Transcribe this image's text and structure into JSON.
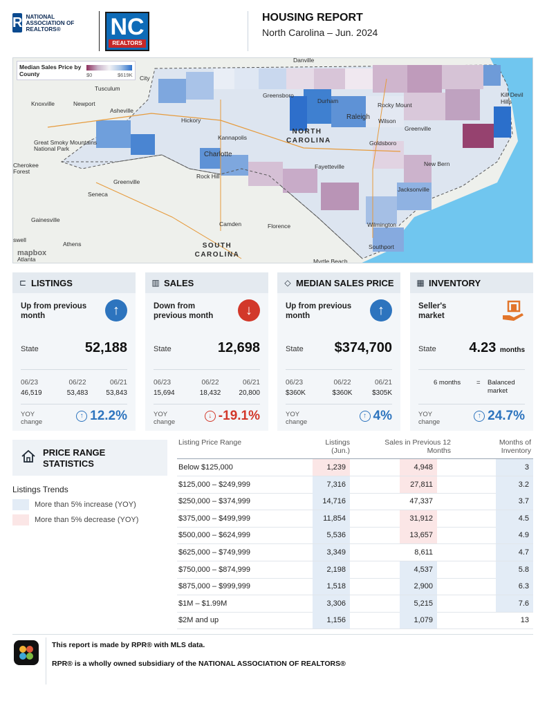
{
  "header": {
    "nar_logo_text": "NATIONAL ASSOCIATION OF REALTORS®",
    "nar_logo_mark": "R",
    "nc_logo_text": "NC",
    "nc_logo_sub": "REALTORS",
    "title": "HOUSING REPORT",
    "subtitle": "North Carolina  –  Jun. 2024"
  },
  "map": {
    "legend_title": "Median Sales Price by County",
    "legend_min": "$0",
    "legend_max": "$619K",
    "attribution": "mapbox",
    "colors": {
      "low": "#8e2f5d",
      "mid": "#f2f2f5",
      "high": "#2b6fcb",
      "ocean": "#70c6ef",
      "land": "#eef0ec"
    },
    "labels": {
      "danville": "Danville",
      "tusculum": "Tusculum",
      "knoxville": "Knoxville",
      "newport": "Newport",
      "smoky": "Great Smoky Mountains National Park",
      "cherokee": "Cherokee Forest",
      "asheville": "Asheville",
      "hickory": "Hickory",
      "kannapolis": "Kannapolis",
      "charlotte": "Charlotte",
      "rockhill": "Rock Hill",
      "greensboro": "Greensboro",
      "durham": "Durham",
      "raleigh": "Raleigh",
      "rockymount": "Rocky Mount",
      "wilson": "Wilson",
      "greenville_nc": "Greenville",
      "goldsboro": "Goldsboro",
      "newbern": "New Bern",
      "fayetteville": "Fayetteville",
      "jacksonville": "Jacksonville",
      "wilmington": "Wilmington",
      "southport": "Southport",
      "myrtle": "Myrtle Beach",
      "killdevil": "Kill Devil Hills",
      "nc_state": "NORTH CAROLINA",
      "sc_state": "SOUTH CAROLINA",
      "greenville_sc": "Greenville",
      "seneca": "Seneca",
      "gainesville": "Gainesville",
      "athens": "Athens",
      "camden": "Camden",
      "florence": "Florence",
      "atlanta": "Atlanta",
      "city": "City",
      "roswell": "swell"
    }
  },
  "cards": [
    {
      "title": "LISTINGS",
      "icon": "sign-icon",
      "icon_glyph": "⊏",
      "trend": "Up from previous month",
      "trend_dir": "up",
      "trend_glyph": "↑",
      "state_label": "State",
      "state_value": "52,188",
      "state_unit": "",
      "history": [
        {
          "date": "06/23",
          "value": "46,519"
        },
        {
          "date": "06/22",
          "value": "53,483"
        },
        {
          "date": "06/21",
          "value": "53,843"
        }
      ],
      "yoy_label": "YOY change",
      "yoy_value": "12.2%",
      "yoy_dir": "up",
      "yoy_glyph": "↑"
    },
    {
      "title": "SALES",
      "icon": "bar-chart-icon",
      "icon_glyph": "▥",
      "trend": "Down from previous month",
      "trend_dir": "down",
      "trend_glyph": "↓",
      "state_label": "State",
      "state_value": "12,698",
      "state_unit": "",
      "history": [
        {
          "date": "06/23",
          "value": "15,694"
        },
        {
          "date": "06/22",
          "value": "18,432"
        },
        {
          "date": "06/21",
          "value": "20,800"
        }
      ],
      "yoy_label": "YOY change",
      "yoy_value": "-19.1%",
      "yoy_dir": "down",
      "yoy_glyph": "↓"
    },
    {
      "title": "MEDIAN SALES PRICE",
      "icon": "tag-icon",
      "icon_glyph": "◇",
      "trend": "Up from previous month",
      "trend_dir": "up",
      "trend_glyph": "↑",
      "state_label": "State",
      "state_value": "$374,700",
      "state_unit": "",
      "history": [
        {
          "date": "06/23",
          "value": "$360K"
        },
        {
          "date": "06/22",
          "value": "$360K"
        },
        {
          "date": "06/21",
          "value": "$305K"
        }
      ],
      "yoy_label": "YOY change",
      "yoy_value": "4%",
      "yoy_dir": "up",
      "yoy_glyph": "↑"
    },
    {
      "title": "INVENTORY",
      "icon": "calendar-icon",
      "icon_glyph": "▦",
      "trend": "Seller's market",
      "trend_dir": "seller",
      "trend_glyph": "",
      "state_label": "State",
      "state_value": "4.23",
      "state_unit": "months",
      "balanced": {
        "left": "6 months",
        "eq": "=",
        "right": "Balanced market"
      },
      "yoy_label": "YOY change",
      "yoy_value": "24.7%",
      "yoy_dir": "up",
      "yoy_glyph": "↑"
    }
  ],
  "price_range": {
    "title": "PRICE RANGE STATISTICS",
    "trends_title": "Listings Trends",
    "legend": [
      {
        "text": "More than 5% increase (YOY)",
        "color": "#e3ecf6"
      },
      {
        "text": "More than 5% decrease (YOY)",
        "color": "#fbe6e6"
      }
    ],
    "headers": {
      "range": "Listing Price Range",
      "listings": "Listings (Jun.)",
      "sales": "Sales in Previous 12 Months",
      "moi": "Months of Inventory"
    },
    "rows": [
      {
        "range": "Below $125,000",
        "listings": "1,239",
        "sales": "4,948",
        "moi": "3",
        "lt": "pink",
        "st": "pink",
        "mt": "blue"
      },
      {
        "range": "$125,000  –  $249,999",
        "listings": "7,316",
        "sales": "27,811",
        "moi": "3.2",
        "lt": "blue",
        "st": "pink",
        "mt": "blue"
      },
      {
        "range": "$250,000  –  $374,999",
        "listings": "14,716",
        "sales": "47,337",
        "moi": "3.7",
        "lt": "blue",
        "st": "none",
        "mt": "blue"
      },
      {
        "range": "$375,000  –  $499,999",
        "listings": "11,854",
        "sales": "31,912",
        "moi": "4.5",
        "lt": "blue",
        "st": "pink",
        "mt": "blue"
      },
      {
        "range": "$500,000  –  $624,999",
        "listings": "5,536",
        "sales": "13,657",
        "moi": "4.9",
        "lt": "blue",
        "st": "pink",
        "mt": "blue"
      },
      {
        "range": "$625,000  –  $749,999",
        "listings": "3,349",
        "sales": "8,611",
        "moi": "4.7",
        "lt": "blue",
        "st": "none",
        "mt": "blue"
      },
      {
        "range": "$750,000  –  $874,999",
        "listings": "2,198",
        "sales": "4,537",
        "moi": "5.8",
        "lt": "blue",
        "st": "blue",
        "mt": "blue"
      },
      {
        "range": "$875,000  –  $999,999",
        "listings": "1,518",
        "sales": "2,900",
        "moi": "6.3",
        "lt": "blue",
        "st": "blue",
        "mt": "blue"
      },
      {
        "range": "$1M  –  $1.99M",
        "listings": "3,306",
        "sales": "5,215",
        "moi": "7.6",
        "lt": "blue",
        "st": "blue",
        "mt": "blue"
      },
      {
        "range": "$2M and up",
        "listings": "1,156",
        "sales": "1,079",
        "moi": "13",
        "lt": "blue",
        "st": "blue",
        "mt": "none"
      }
    ]
  },
  "footer": {
    "line1": "This report is made by RPR® with MLS data.",
    "line2": "RPR® is a wholly owned subsidiary of the NATIONAL ASSOCIATION OF REALTORS®"
  }
}
